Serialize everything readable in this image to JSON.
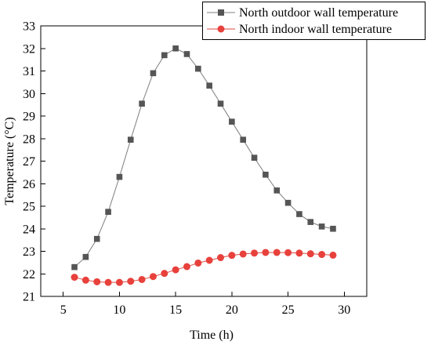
{
  "chart_data": {
    "type": "line",
    "xlabel": "Time (h)",
    "ylabel": "Temperature (°C)",
    "xlim": [
      3,
      32
    ],
    "ylim": [
      21,
      33
    ],
    "xticks": [
      5,
      10,
      15,
      20,
      25,
      30
    ],
    "yticks": [
      21,
      22,
      23,
      24,
      25,
      26,
      27,
      28,
      29,
      30,
      31,
      32,
      33
    ],
    "grid": false,
    "legend_position": "top-right",
    "x": [
      6,
      7,
      8,
      9,
      10,
      11,
      12,
      13,
      14,
      15,
      16,
      17,
      18,
      19,
      20,
      21,
      22,
      23,
      24,
      25,
      26,
      27,
      28,
      29
    ],
    "series": [
      {
        "name": "North outdoor wall temperature",
        "marker": "square",
        "color": "#555555",
        "line_color": "#7f7f7f",
        "values": [
          22.3,
          22.75,
          23.55,
          24.75,
          26.3,
          27.95,
          29.55,
          30.9,
          31.7,
          32.0,
          31.75,
          31.1,
          30.35,
          29.55,
          28.75,
          27.95,
          27.15,
          26.4,
          25.7,
          25.15,
          24.65,
          24.3,
          24.1,
          24.0
        ]
      },
      {
        "name": "North indoor wall temperature",
        "marker": "circle",
        "color": "#e8413c",
        "line_color": "#d94a45",
        "values": [
          21.85,
          21.72,
          21.65,
          21.62,
          21.62,
          21.67,
          21.75,
          21.88,
          22.02,
          22.18,
          22.32,
          22.48,
          22.6,
          22.72,
          22.82,
          22.88,
          22.92,
          22.95,
          22.95,
          22.94,
          22.92,
          22.89,
          22.86,
          22.83
        ]
      }
    ]
  }
}
